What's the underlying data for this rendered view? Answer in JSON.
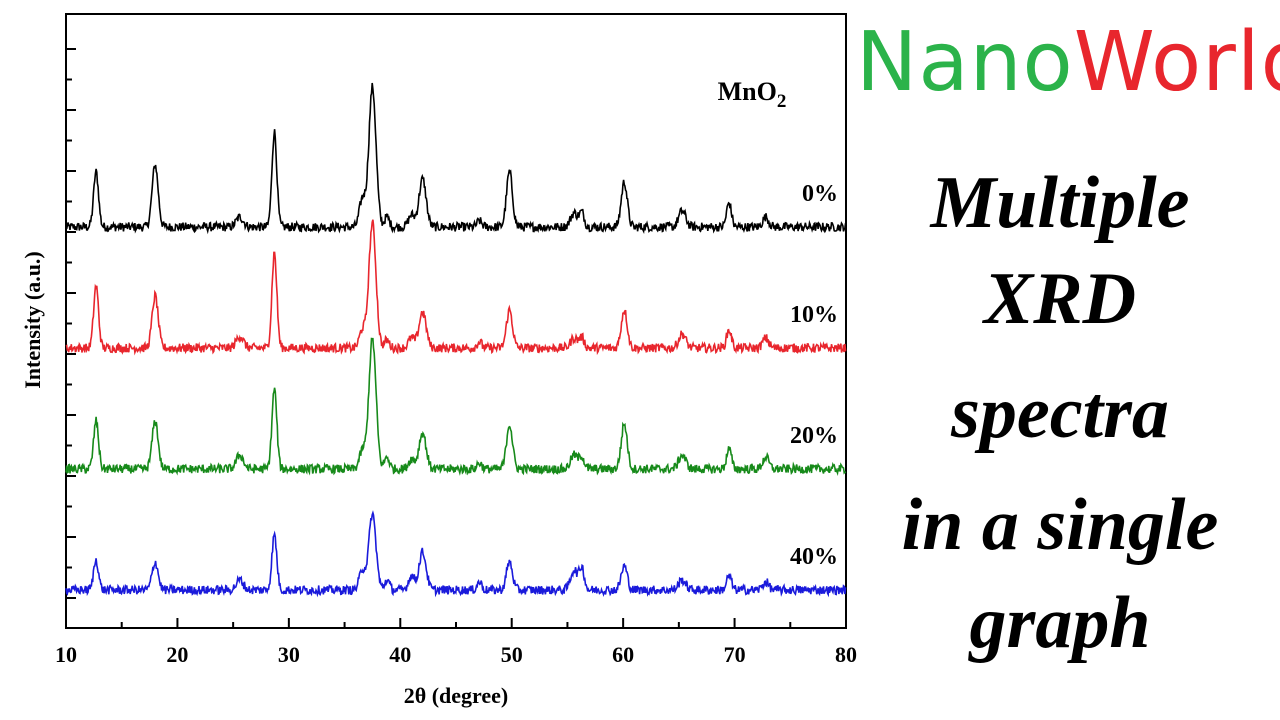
{
  "branding": {
    "part1": "Nano",
    "part2": "World",
    "part1_color": "#2bb34a",
    "part2_color": "#e8262d"
  },
  "caption": {
    "line1": "Multiple",
    "line2": "XRD",
    "line3": "spectra",
    "line4": "in a single",
    "line5": "graph"
  },
  "chart_data": {
    "type": "line",
    "title": "",
    "annotation": "MnO2",
    "xlabel": "2θ (degree)",
    "ylabel": "Intensity (a.u.)",
    "xlim": [
      10,
      80
    ],
    "xticks": [
      10,
      20,
      30,
      40,
      50,
      60,
      70,
      80
    ],
    "yticks_labeled": false,
    "grid": false,
    "legend": "inline labels at right",
    "peaks_2theta": [
      12.7,
      18.0,
      25.6,
      28.7,
      36.6,
      37.5,
      38.8,
      41.0,
      42.0,
      47.1,
      49.8,
      55.6,
      56.3,
      60.1,
      65.3,
      69.5,
      72.8
    ],
    "series": [
      {
        "name": "0%",
        "color": "#000000",
        "offset": 3,
        "heights": [
          0.55,
          0.62,
          0.1,
          0.95,
          0.28,
          1.4,
          0.1,
          0.12,
          0.48,
          0.06,
          0.55,
          0.14,
          0.14,
          0.45,
          0.16,
          0.24,
          0.1
        ]
      },
      {
        "name": "10%",
        "color": "#e8262d",
        "offset": 2,
        "heights": [
          0.62,
          0.52,
          0.12,
          0.95,
          0.18,
          1.25,
          0.08,
          0.1,
          0.36,
          0.06,
          0.38,
          0.1,
          0.1,
          0.38,
          0.14,
          0.18,
          0.1
        ]
      },
      {
        "name": "20%",
        "color": "#178a1a",
        "offset": 1,
        "heights": [
          0.48,
          0.48,
          0.14,
          0.8,
          0.18,
          1.3,
          0.12,
          0.1,
          0.36,
          0.06,
          0.45,
          0.14,
          0.12,
          0.45,
          0.14,
          0.2,
          0.12
        ]
      },
      {
        "name": "40%",
        "color": "#1a1adb",
        "offset": 0,
        "heights": [
          0.3,
          0.28,
          0.1,
          0.55,
          0.2,
          0.76,
          0.1,
          0.14,
          0.38,
          0.08,
          0.28,
          0.2,
          0.22,
          0.24,
          0.1,
          0.14,
          0.08
        ]
      }
    ]
  }
}
